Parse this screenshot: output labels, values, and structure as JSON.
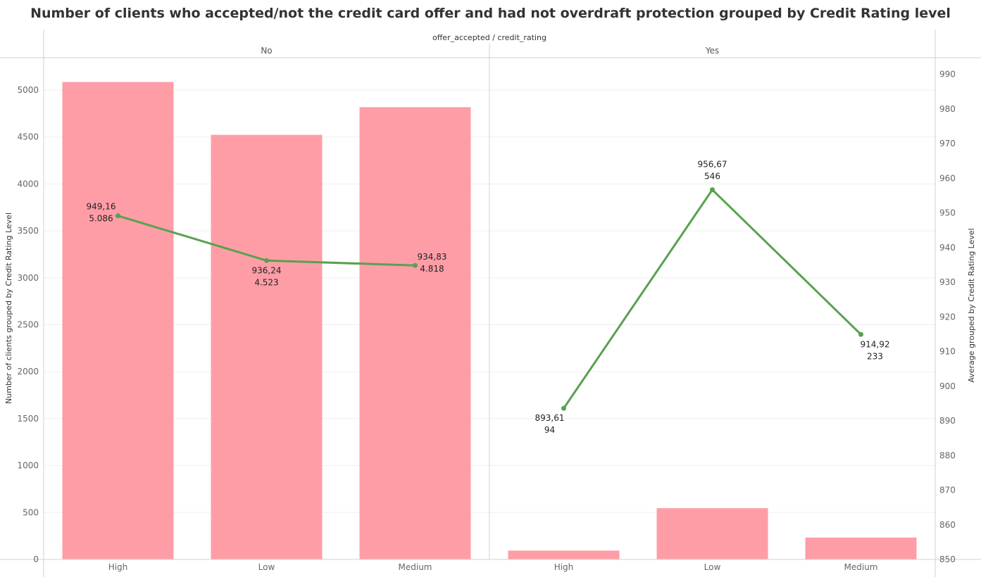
{
  "title": "Number of clients who accepted/not the credit card offer and had not overdraft protection grouped by Credit Rating level",
  "column_header": "offer_accepted / credit_rating",
  "chart_data": {
    "type": "bar",
    "title": "Number of clients who accepted/not the credit card offer and had not overdraft protection grouped by Credit Rating level",
    "panels": [
      "No",
      "Yes"
    ],
    "categories": [
      "High",
      "Low",
      "Medium"
    ],
    "series": [
      {
        "type": "bar",
        "axis": "left",
        "color": "#ff9da7",
        "values": [
          [
            5086,
            4523,
            4818
          ],
          [
            94,
            546,
            233
          ]
        ],
        "labels": [
          [
            "5.086",
            "4.523",
            "4.818"
          ],
          [
            "94",
            "546",
            "233"
          ]
        ]
      },
      {
        "type": "line",
        "axis": "right",
        "color": "#59a14f",
        "values": [
          [
            949.16,
            936.24,
            934.83
          ],
          [
            893.61,
            956.67,
            914.92
          ]
        ],
        "labels": [
          [
            "949,16",
            "936,24",
            "934,83"
          ],
          [
            "893,61",
            "956,67",
            "914,92"
          ]
        ]
      }
    ],
    "ylabel": "Number of clients grouped by Credit Rating Level",
    "ylabel_right": "Average grouped by Credit Rating Level",
    "ylim": [
      0,
      5000
    ],
    "yticks": [
      0,
      500,
      1000,
      1500,
      2000,
      2500,
      3000,
      3500,
      4000,
      4500,
      5000
    ],
    "ylim_right": [
      850,
      990
    ],
    "yticks_right": [
      850,
      860,
      870,
      880,
      890,
      900,
      910,
      920,
      930,
      940,
      950,
      960,
      970,
      980,
      990
    ],
    "grid": true,
    "legend": "none"
  }
}
